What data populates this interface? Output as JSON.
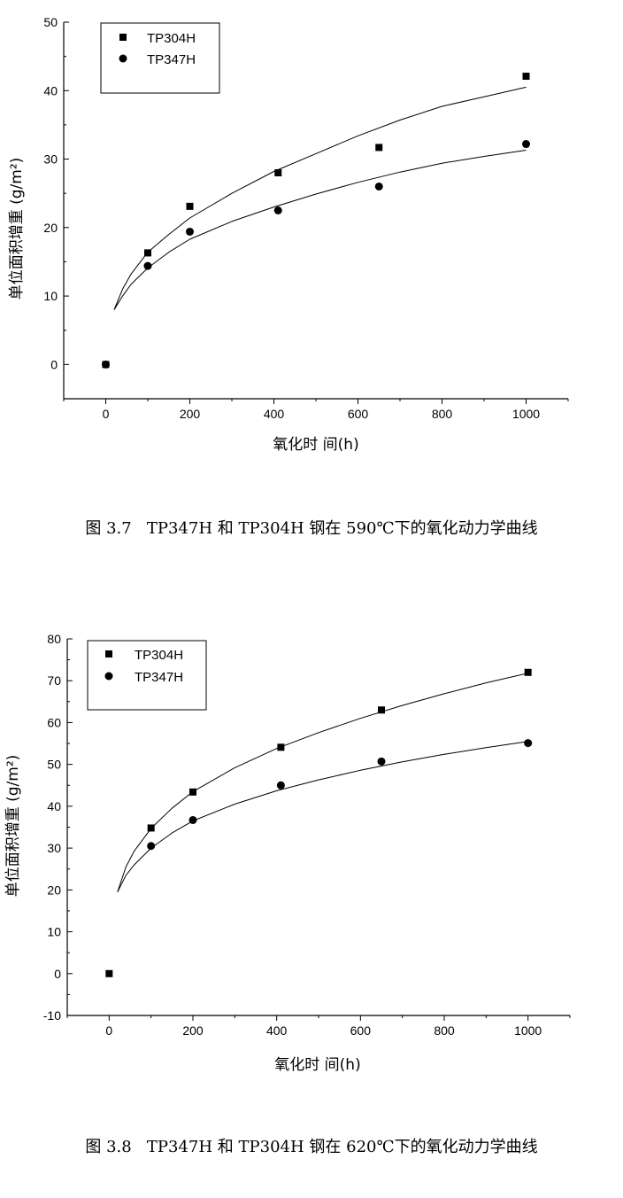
{
  "charts": [
    {
      "caption": "图 3.7   TP347H 和 TP304H 钢在 590℃下的氧化动力学曲线",
      "chart_data": {
        "type": "scatter",
        "xlabel": "氧化时 间(h)",
        "ylabel": "单位面积增重 (g/m²)",
        "xlim": [
          -100,
          1100
        ],
        "ylim": [
          -5,
          50
        ],
        "xticks": [
          0,
          200,
          400,
          600,
          800,
          1000
        ],
        "yticks": [
          0,
          10,
          20,
          30,
          40,
          50
        ],
        "legend_position": "top-left",
        "grid": false,
        "series": [
          {
            "name": "TP304H",
            "marker": "square",
            "x": [
              0,
              100,
              200,
              410,
              650,
              1000
            ],
            "y": [
              0,
              16.3,
              23.1,
              28.0,
              31.7,
              42.1
            ],
            "fit_curve": {
              "x": [
                20,
                40,
                60,
                100,
                150,
                200,
                300,
                400,
                500,
                600,
                700,
                800,
                900,
                1000
              ],
              "y": [
                8.0,
                11.0,
                13.2,
                16.4,
                19.0,
                21.4,
                25.0,
                28.2,
                30.8,
                33.4,
                35.7,
                37.7,
                39.1,
                40.5
              ]
            }
          },
          {
            "name": "TP347H",
            "marker": "circle",
            "x": [
              0,
              100,
              200,
              410,
              650,
              1000
            ],
            "y": [
              0,
              14.4,
              19.4,
              22.5,
              26.0,
              32.2
            ],
            "fit_curve": {
              "x": [
                20,
                40,
                60,
                100,
                150,
                200,
                300,
                400,
                500,
                600,
                700,
                800,
                900,
                1000
              ],
              "y": [
                8.0,
                10.0,
                11.7,
                14.1,
                16.4,
                18.3,
                20.9,
                23.0,
                24.9,
                26.6,
                28.1,
                29.4,
                30.4,
                31.3
              ]
            }
          }
        ]
      }
    },
    {
      "caption": "图 3.8   TP347H 和 TP304H 钢在 620℃下的氧化动力学曲线",
      "chart_data": {
        "type": "scatter",
        "xlabel": "氧化时 间(h)",
        "ylabel": "单位面积增重 (g/m²)",
        "xlim": [
          -100,
          1100
        ],
        "ylim": [
          -10,
          80
        ],
        "xticks": [
          0,
          200,
          400,
          600,
          800,
          1000
        ],
        "yticks": [
          -10,
          0,
          10,
          20,
          30,
          40,
          50,
          60,
          70,
          80
        ],
        "legend_position": "top-left",
        "grid": false,
        "series": [
          {
            "name": "TP304H",
            "marker": "square",
            "x": [
              0,
              100,
              200,
              410,
              650,
              1000
            ],
            "y": [
              0,
              34.8,
              43.4,
              54.1,
              63.0,
              72.0
            ],
            "fit_curve": {
              "x": [
                20,
                40,
                60,
                100,
                150,
                200,
                300,
                400,
                500,
                600,
                700,
                800,
                900,
                1000
              ],
              "y": [
                19.5,
                25.5,
                29.3,
                34.7,
                39.5,
                43.5,
                49.2,
                53.8,
                57.6,
                61.0,
                64.1,
                66.9,
                69.5,
                71.8
              ]
            }
          },
          {
            "name": "TP347H",
            "marker": "circle",
            "x": [
              100,
              200,
              410,
              650,
              1000
            ],
            "y": [
              30.5,
              36.7,
              45.0,
              50.7,
              55.1
            ],
            "fit_curve": {
              "x": [
                20,
                40,
                60,
                100,
                150,
                200,
                300,
                400,
                500,
                600,
                700,
                800,
                900,
                1000
              ],
              "y": [
                19.5,
                23.5,
                26.0,
                30.0,
                33.6,
                36.5,
                40.5,
                43.7,
                46.3,
                48.6,
                50.6,
                52.4,
                54.0,
                55.5
              ]
            }
          }
        ]
      }
    }
  ]
}
